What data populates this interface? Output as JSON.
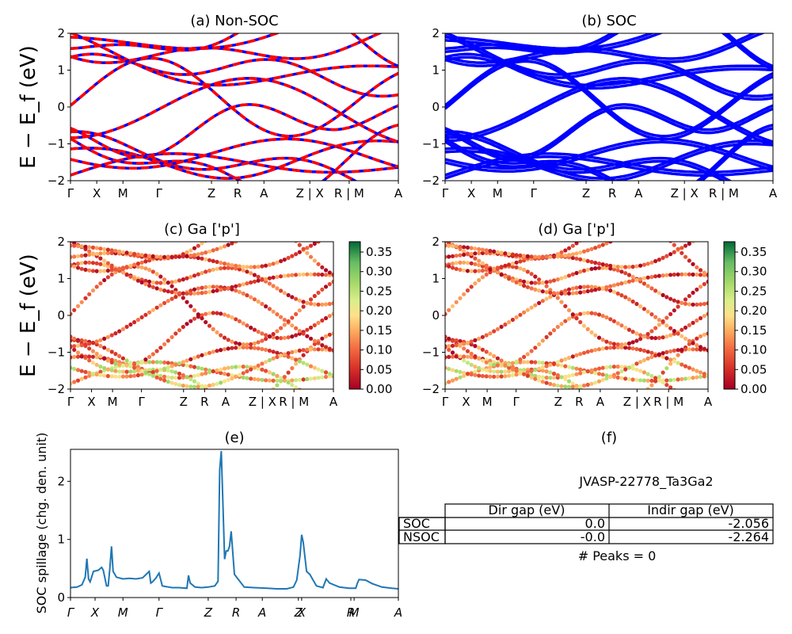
{
  "chart_data": [
    {
      "id": "a",
      "type": "line",
      "title": "(a) Non-SOC",
      "ylabel": "E − E_f (eV)",
      "ylim": [
        -2,
        2
      ],
      "yticks": [
        "−2",
        "−1",
        "0",
        "1",
        "2"
      ],
      "xticks": [
        "Γ",
        "X",
        "M",
        "Γ",
        "Z",
        "R",
        "A",
        "Z | X",
        "R | M",
        "A"
      ],
      "colors": [
        "#0000ff",
        "#ff0000"
      ]
    },
    {
      "id": "b",
      "type": "line",
      "title": "(b) SOC",
      "ylim": [
        -2,
        2
      ],
      "yticks": [
        "−2",
        "−1",
        "0",
        "1",
        "2"
      ],
      "xticks": [
        "Γ",
        "X",
        "M",
        "Γ",
        "Z",
        "R",
        "A",
        "Z | X",
        "R | M",
        "A"
      ],
      "colors": [
        "#0000ff"
      ]
    },
    {
      "id": "c",
      "type": "scatter",
      "title": "(c)  Ga ['p']",
      "ylabel": "E − E_f (eV)",
      "ylim": [
        -2,
        2
      ],
      "yticks": [
        "−2",
        "−1",
        "0",
        "1",
        "2"
      ],
      "xticks": [
        "Γ",
        "X",
        "M",
        "Γ",
        "Z",
        "R",
        "A",
        "Z | X",
        "R | M",
        "A"
      ],
      "colorbar_ticks": [
        "0.00",
        "0.05",
        "0.10",
        "0.15",
        "0.20",
        "0.25",
        "0.30",
        "0.35"
      ],
      "colormap": "RdYlGn"
    },
    {
      "id": "d",
      "type": "scatter",
      "title": "(d) Ga ['p']",
      "ylim": [
        -2,
        2
      ],
      "yticks": [
        "−2",
        "−1",
        "0",
        "1",
        "2"
      ],
      "xticks": [
        "Γ",
        "X",
        "M",
        "Γ",
        "Z",
        "R",
        "A",
        "Z | X",
        "R | M",
        "A"
      ],
      "colorbar_ticks": [
        "0.00",
        "0.05",
        "0.10",
        "0.15",
        "0.20",
        "0.25",
        "0.30",
        "0.35"
      ],
      "colormap": "RdYlGn"
    },
    {
      "id": "e",
      "type": "line",
      "title": "(e)",
      "ylabel": "SOC spillage (chg. den. unit)",
      "ylim": [
        0,
        2.55
      ],
      "yticks": [
        "0",
        "1",
        "2"
      ],
      "xticks": [
        "Γ",
        "X",
        "M",
        "Γ",
        "Z",
        "R",
        "A",
        "Z",
        "X",
        "R",
        "M",
        "A"
      ],
      "x": [
        0,
        0.02,
        0.035,
        0.045,
        0.05,
        0.055,
        0.06,
        0.07,
        0.085,
        0.095,
        0.1,
        0.11,
        0.115,
        0.12,
        0.125,
        0.13,
        0.14,
        0.16,
        0.18,
        0.2,
        0.22,
        0.24,
        0.245,
        0.25,
        0.26,
        0.27,
        0.28,
        0.29,
        0.3,
        0.31,
        0.33,
        0.355,
        0.36,
        0.365,
        0.38,
        0.4,
        0.42,
        0.44,
        0.45,
        0.455,
        0.46,
        0.465,
        0.47,
        0.475,
        0.48,
        0.485,
        0.49,
        0.5,
        0.53,
        0.56,
        0.6,
        0.63,
        0.66,
        0.68,
        0.69,
        0.7,
        0.705,
        0.71,
        0.72,
        0.73,
        0.75,
        0.77,
        0.78,
        0.79,
        0.82,
        0.85,
        0.87,
        0.875,
        0.88,
        0.9,
        0.92,
        0.95,
        0.98,
        1.0
      ],
      "values": [
        0.17,
        0.18,
        0.22,
        0.35,
        0.67,
        0.32,
        0.27,
        0.45,
        0.47,
        0.52,
        0.47,
        0.2,
        0.2,
        0.5,
        0.88,
        0.45,
        0.35,
        0.32,
        0.33,
        0.32,
        0.34,
        0.45,
        0.25,
        0.27,
        0.33,
        0.42,
        0.2,
        0.19,
        0.18,
        0.17,
        0.17,
        0.16,
        0.38,
        0.25,
        0.18,
        0.17,
        0.18,
        0.2,
        0.28,
        2.2,
        2.52,
        1.6,
        0.66,
        0.8,
        0.8,
        0.88,
        1.14,
        0.4,
        0.18,
        0.17,
        0.16,
        0.15,
        0.15,
        0.18,
        0.3,
        0.72,
        1.08,
        0.95,
        0.45,
        0.4,
        0.2,
        0.17,
        0.32,
        0.25,
        0.18,
        0.16,
        0.16,
        0.25,
        0.31,
        0.3,
        0.24,
        0.18,
        0.16,
        0.15
      ],
      "color": "#1f77b4"
    },
    {
      "id": "f",
      "type": "table",
      "title": "(f)",
      "material": "JVASP-22778_Ta3Ga2",
      "columns": [
        "Dir gap (eV)",
        "Indir gap (eV)"
      ],
      "rows": [
        {
          "label": "SOC",
          "dir": "0.0",
          "indir": "-2.056"
        },
        {
          "label": "NSOC",
          "dir": "-0.0",
          "indir": "-2.264"
        }
      ],
      "peaks": "# Peaks = 0"
    }
  ]
}
